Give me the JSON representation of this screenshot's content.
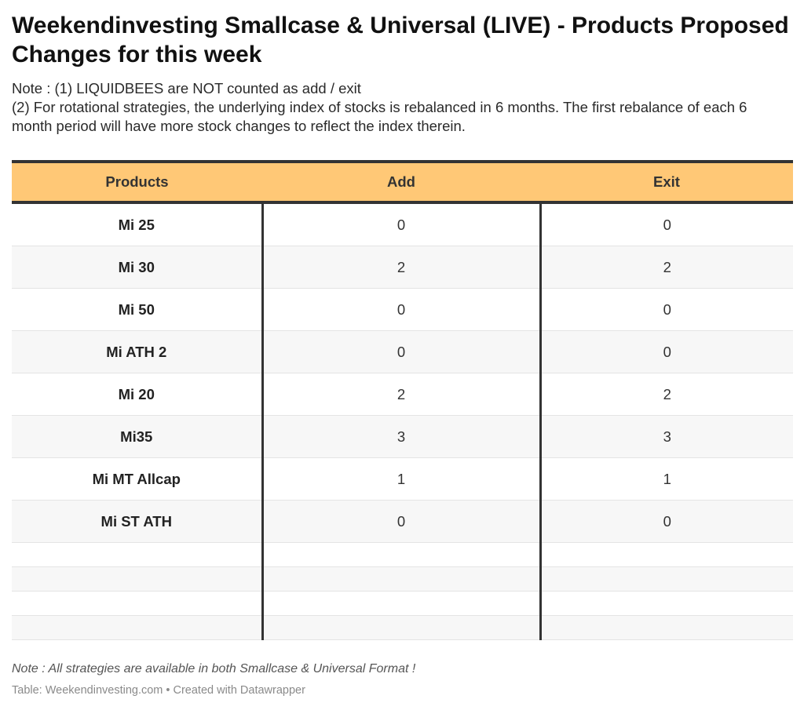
{
  "title": "Weekendinvesting Smallcase & Universal (LIVE) - Products Proposed Changes for this week",
  "notes": [
    "Note : (1) LIQUIDBEES are NOT counted as add / exit",
    "(2) For rotational strategies, the underlying index of stocks is rebalanced in 6 months. The first rebalance of each 6 month period will have more stock changes to reflect the index therein."
  ],
  "table": {
    "headers": [
      "Products",
      "Add",
      "Exit"
    ],
    "rows": [
      [
        "Mi 25",
        "0",
        "0"
      ],
      [
        "Mi 30",
        "2",
        "2"
      ],
      [
        "Mi 50",
        "0",
        "0"
      ],
      [
        "Mi ATH 2",
        "0",
        "0"
      ],
      [
        "Mi 20",
        "2",
        "2"
      ],
      [
        "Mi35",
        "3",
        "3"
      ],
      [
        "Mi MT Allcap",
        "1",
        "1"
      ],
      [
        "Mi ST ATH",
        "0",
        "0"
      ],
      [
        "",
        "",
        ""
      ],
      [
        "",
        "",
        ""
      ],
      [
        "",
        "",
        ""
      ],
      [
        "",
        "",
        ""
      ]
    ]
  },
  "footnote": "Note : All strategies are available in both Smallcase & Universal Format !",
  "credit": "Table: Weekendinvesting.com • Created with Datawrapper",
  "colors": {
    "header_bg": "#ffc876",
    "rule": "#333333",
    "stripe": "#f7f7f7"
  }
}
